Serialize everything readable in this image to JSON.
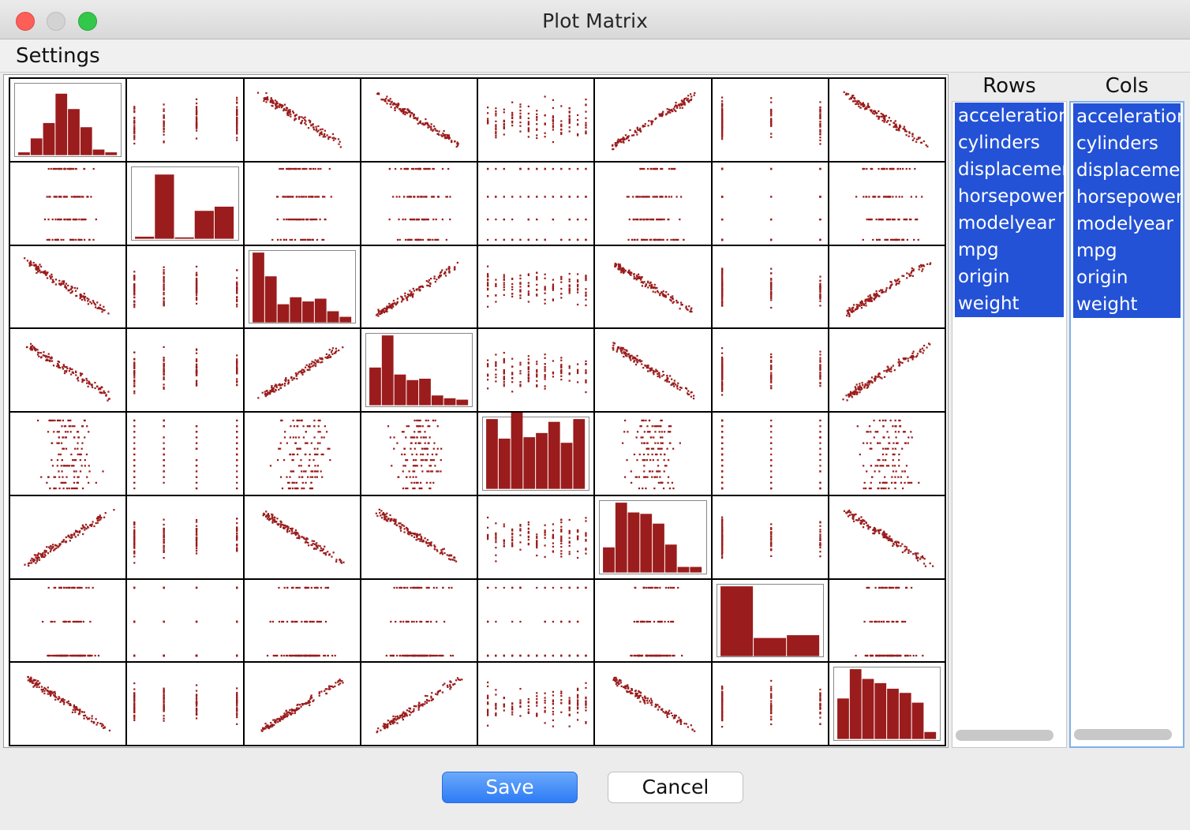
{
  "window": {
    "title": "Plot Matrix"
  },
  "menu": {
    "settings": "Settings"
  },
  "variables": [
    "acceleration",
    "cylinders",
    "displacement",
    "horsepower",
    "modelyear",
    "mpg",
    "origin",
    "weight"
  ],
  "rows_list": {
    "header": "Rows",
    "items": [
      "acceleration",
      "cylinders",
      "displacement",
      "horsepower",
      "modelyear",
      "mpg",
      "origin",
      "weight"
    ]
  },
  "cols_list": {
    "header": "Cols",
    "items": [
      "acceleration",
      "cylinders",
      "displacement",
      "horsepower",
      "modelyear",
      "mpg",
      "origin",
      "weight"
    ]
  },
  "buttons": {
    "save": "Save",
    "cancel": "Cancel"
  },
  "colors": {
    "marks": "#9b1c1c",
    "selection": "#2352d6",
    "save_button": "#2d7bf5"
  },
  "chart_data": {
    "type": "scatter-matrix",
    "variables": [
      "acceleration",
      "cylinders",
      "displacement",
      "horsepower",
      "modelyear",
      "mpg",
      "origin",
      "weight"
    ],
    "diagonal": "histogram",
    "histograms": {
      "acceleration": [
        4,
        24,
        46,
        88,
        66,
        40,
        8,
        4
      ],
      "cylinders": [
        3,
        92,
        2,
        40,
        46
      ],
      "displacement": [
        100,
        66,
        26,
        36,
        30,
        34,
        16,
        8
      ],
      "horsepower": [
        54,
        100,
        44,
        36,
        38,
        14,
        10,
        8
      ],
      "modelyear": [
        100,
        72,
        110,
        74,
        80,
        96,
        66,
        100
      ],
      "mpg": [
        36,
        100,
        86,
        84,
        70,
        40,
        8,
        8
      ],
      "origin": [
        100,
        26,
        30
      ],
      "weight": [
        58,
        100,
        86,
        80,
        72,
        66,
        52,
        10
      ]
    }
  }
}
